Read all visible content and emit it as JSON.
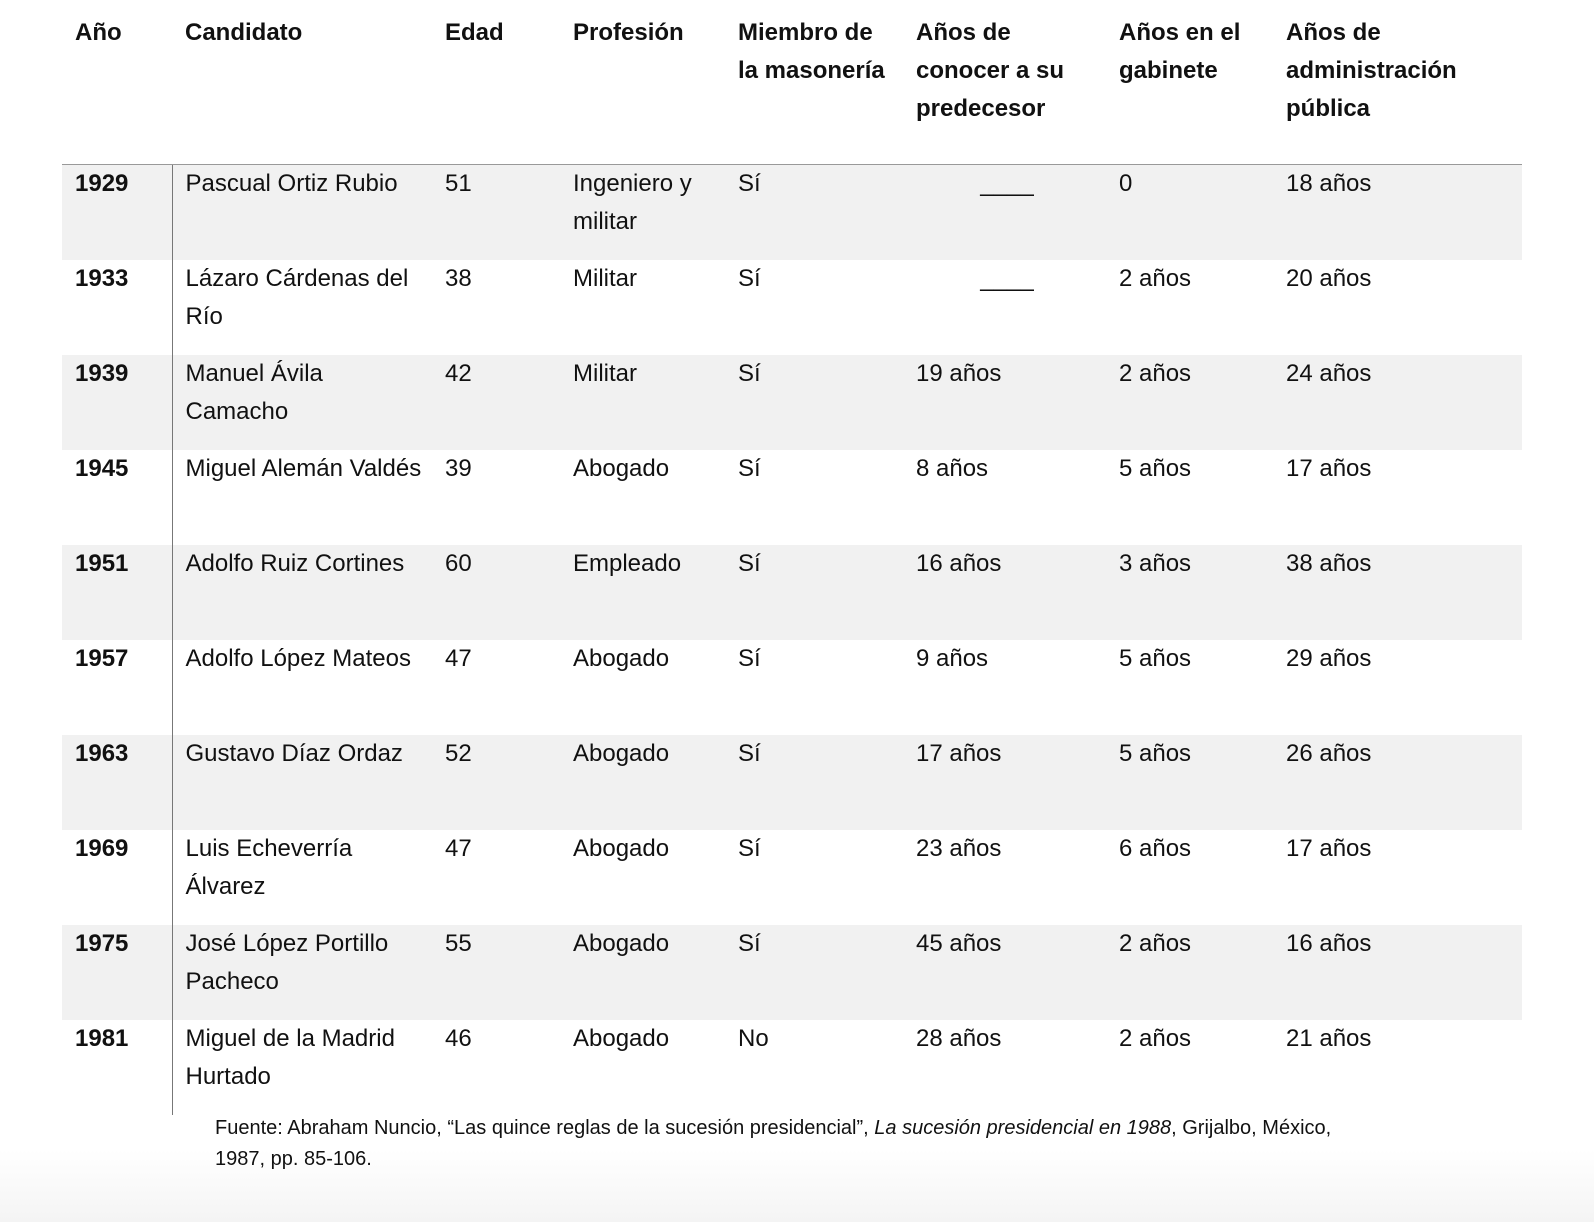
{
  "table": {
    "headers": [
      "Año",
      "Candidato",
      "Edad",
      "Profesión",
      "Miembro de la masonería",
      "Años de conocer a su predecesor",
      "Años en el gabinete",
      "Años de administración pública"
    ],
    "rows": [
      [
        "1929",
        "Pascual Ortiz Rubio",
        "51",
        "Ingeniero y militar",
        "Sí",
        "____",
        "0",
        "18 años"
      ],
      [
        "1933",
        "Lázaro Cárdenas del Río",
        "38",
        "Militar",
        "Sí",
        "____",
        "2 años",
        "20 años"
      ],
      [
        "1939",
        "Manuel Ávila Camacho",
        "42",
        "Militar",
        "Sí",
        "19 años",
        "2 años",
        "24 años"
      ],
      [
        "1945",
        "Miguel Alemán Valdés",
        "39",
        "Abogado",
        "Sí",
        "8 años",
        "5 años",
        "17 años"
      ],
      [
        "1951",
        "Adolfo Ruiz Cortines",
        "60",
        "Empleado",
        "Sí",
        "16 años",
        "3 años",
        "38 años"
      ],
      [
        "1957",
        "Adolfo López Mateos",
        "47",
        "Abogado",
        "Sí",
        "9 años",
        "5 años",
        "29 años"
      ],
      [
        "1963",
        "Gustavo Díaz Ordaz",
        "52",
        "Abogado",
        "Sí",
        "17 años",
        "5 años",
        "26 años"
      ],
      [
        "1969",
        "Luis Echeverría Álvarez",
        "47",
        "Abogado",
        "Sí",
        "23 años",
        "6 años",
        "17 años"
      ],
      [
        "1975",
        "José López Portillo Pacheco",
        "55",
        "Abogado",
        "Sí",
        "45 años",
        "2 años",
        "16 años"
      ],
      [
        "1981",
        "Miguel de la Madrid Hurtado",
        "46",
        "Abogado",
        "No",
        "28 años",
        "2 años",
        "21 años"
      ]
    ]
  },
  "source": {
    "parts": [
      "Fuente: Abraham Nuncio, “Las quince reglas de la sucesión presidencial”, ",
      "La sucesión presidencial en 1988",
      ", Grijalbo, México, 1987, pp. 85-106."
    ]
  }
}
